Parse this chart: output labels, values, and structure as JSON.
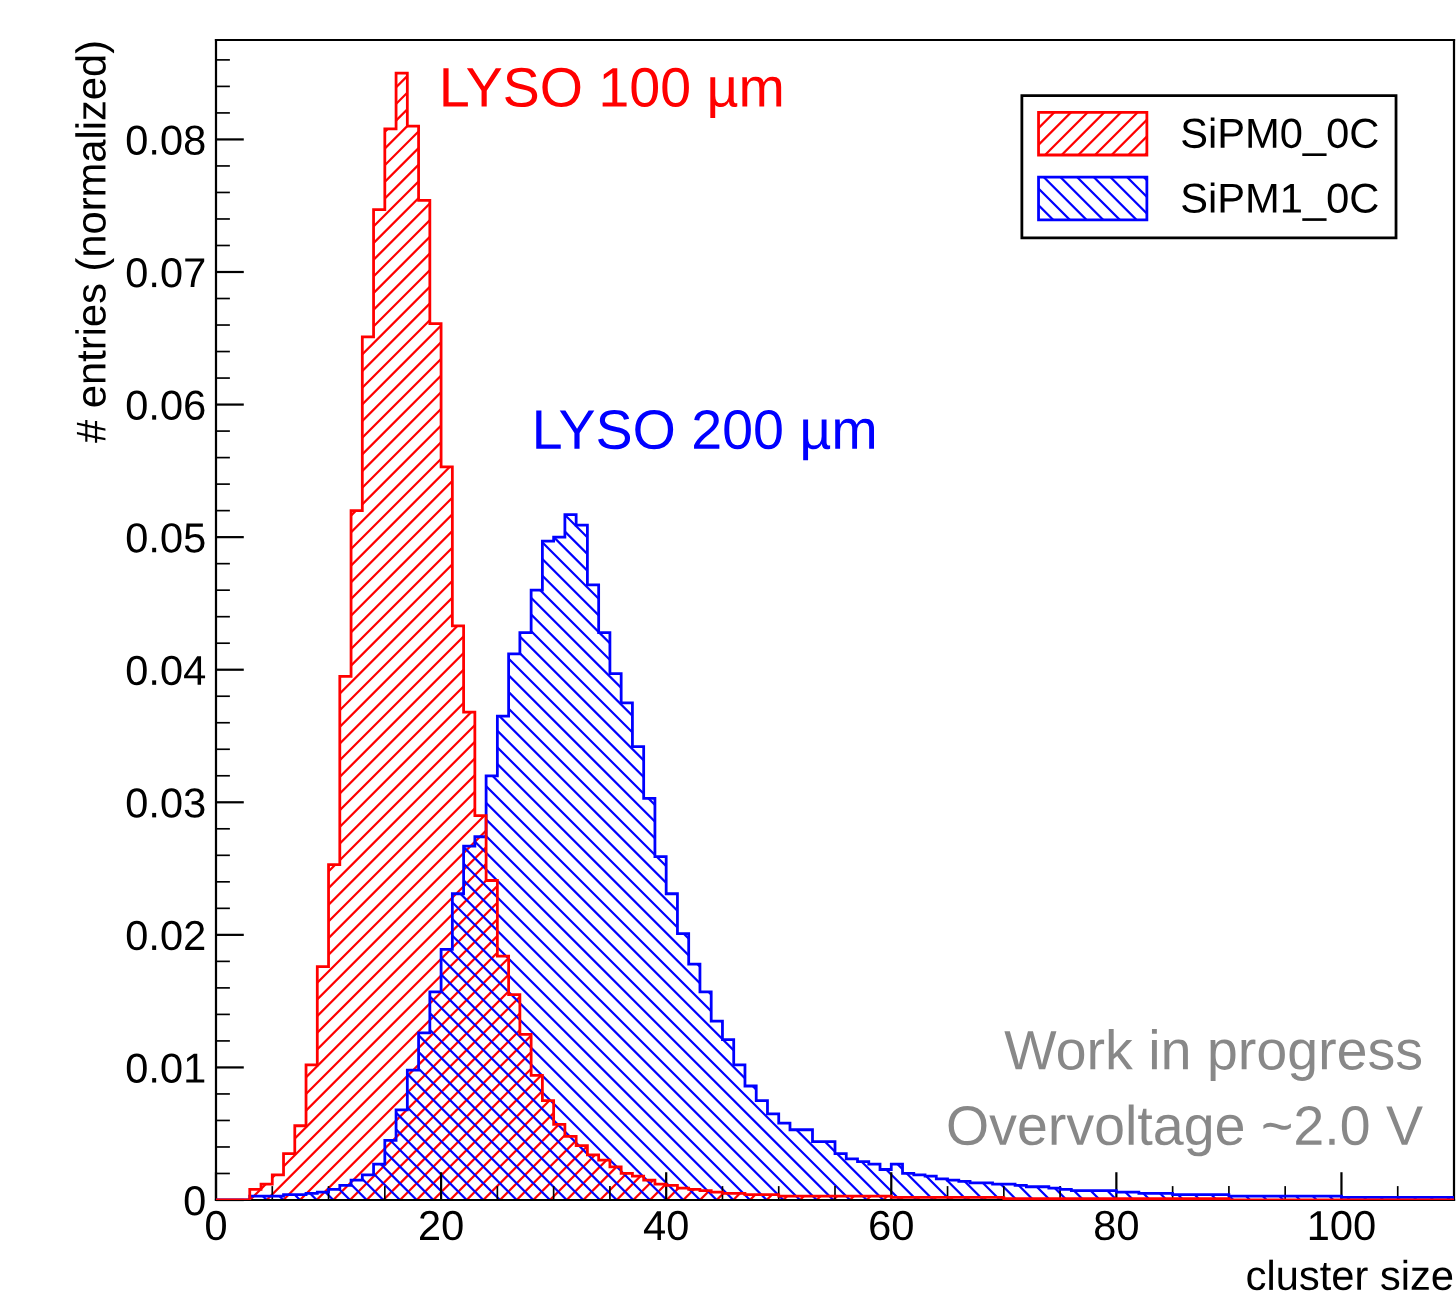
{
  "chart_data": {
    "type": "histogram",
    "xlabel": "cluster size",
    "ylabel": "# entries (normalized)",
    "bins": [
      0,
      1,
      2,
      3,
      4,
      5,
      6,
      7,
      8,
      9,
      10,
      11,
      12,
      13,
      14,
      15,
      16,
      17,
      18,
      19,
      20,
      21,
      22,
      23,
      24,
      25,
      26,
      27,
      28,
      29,
      30,
      31,
      32,
      33,
      34,
      35,
      36,
      37,
      38,
      39,
      40,
      41,
      42,
      43,
      44,
      45,
      46,
      47,
      48,
      49,
      50,
      51,
      52,
      53,
      54,
      55,
      56,
      57,
      58,
      59,
      60,
      61,
      62,
      63,
      64,
      65,
      66,
      67,
      68,
      69,
      70,
      71,
      72,
      73,
      74,
      75,
      76,
      77,
      78,
      79,
      80,
      81,
      82,
      83,
      84,
      85,
      86,
      87,
      88,
      89,
      90,
      91,
      92,
      93,
      94,
      95,
      96,
      97,
      98,
      99,
      100,
      101,
      102,
      103,
      104,
      105,
      106,
      107,
      108,
      109,
      110
    ],
    "series": [
      {
        "name": "SiPM0_0C",
        "color": "#ff0000",
        "values": [
          0,
          0,
          0,
          0.0008,
          0.0012,
          0.0019,
          0.0035,
          0.0056,
          0.0102,
          0.0176,
          0.0253,
          0.0395,
          0.052,
          0.0651,
          0.0747,
          0.0808,
          0.085,
          0.081,
          0.0754,
          0.0661,
          0.0553,
          0.0433,
          0.0368,
          0.029,
          0.0241,
          0.0184,
          0.0155,
          0.0125,
          0.0094,
          0.0075,
          0.0057,
          0.0048,
          0.0041,
          0.0034,
          0.003,
          0.0025,
          0.002,
          0.0018,
          0.0015,
          0.0012,
          0.0011,
          0.0009,
          0.0008,
          0.0007,
          0.0006,
          0.0005,
          0.0005,
          0.0004,
          0.0004,
          0.0004,
          0.0003,
          0.0003,
          0.0003,
          0.0003,
          0.0003,
          0.0003,
          0.0003,
          0.0003,
          0.0003,
          0.0003,
          0.0002,
          0.0002,
          0.0002,
          0.0002,
          0.0002,
          0.0002,
          0.0002,
          0.0002,
          0.0002,
          0.0002,
          0.0001,
          0.0001,
          0.0001,
          0.0001,
          0.0001,
          0.0001,
          0.0001,
          0.0001,
          0.0001,
          0.0001,
          0.0001,
          0.0001,
          0.0001,
          0.0001,
          0.0001,
          0.0001,
          0.0001,
          0.0001,
          0.0001,
          0.0001,
          0,
          0,
          0,
          0,
          0,
          0,
          0,
          0,
          0,
          0,
          0,
          0,
          0,
          0,
          0,
          0,
          0,
          0,
          0,
          0
        ]
      },
      {
        "name": "SiPM1_0C",
        "color": "#0000ff",
        "values": [
          0,
          0,
          0,
          0.0003,
          0.0003,
          0.0003,
          0.0004,
          0.0004,
          0.0005,
          0.0006,
          0.0008,
          0.0011,
          0.0015,
          0.0019,
          0.0027,
          0.0045,
          0.0068,
          0.0098,
          0.0126,
          0.0157,
          0.0189,
          0.0231,
          0.0267,
          0.0274,
          0.032,
          0.0365,
          0.0412,
          0.0428,
          0.046,
          0.0497,
          0.05,
          0.0517,
          0.0509,
          0.0464,
          0.0428,
          0.0397,
          0.0375,
          0.0342,
          0.0303,
          0.0259,
          0.0231,
          0.0201,
          0.0178,
          0.0157,
          0.0135,
          0.0121,
          0.0102,
          0.0086,
          0.0075,
          0.0065,
          0.0058,
          0.0053,
          0.0053,
          0.0044,
          0.0044,
          0.0035,
          0.0031,
          0.0029,
          0.0027,
          0.0023,
          0.0027,
          0.002,
          0.0019,
          0.0018,
          0.0016,
          0.0015,
          0.0014,
          0.0013,
          0.0013,
          0.0012,
          0.0012,
          0.0011,
          0.001,
          0.001,
          0.0009,
          0.0008,
          0.0007,
          0.0007,
          0.0007,
          0.0007,
          0.0006,
          0.0006,
          0.0005,
          0.0005,
          0.0005,
          0.0004,
          0.0004,
          0.0004,
          0.0004,
          0.0004,
          0.0003,
          0.0003,
          0.0003,
          0.0003,
          0.0003,
          0.0003,
          0.0003,
          0.0003,
          0.0003,
          0.0003,
          0.0002,
          0.0002,
          0.0002,
          0.0002,
          0.0002,
          0.0002,
          0.0002,
          0.0002,
          0.0002,
          0.0002
        ]
      }
    ],
    "annotations": [
      "LYSO 100 µm",
      "LYSO 200 µm",
      "Work in progress",
      "Overvoltage ~2.0 V"
    ],
    "xlim": [
      0,
      110
    ],
    "xticks": [
      0,
      20,
      40,
      60,
      80,
      100
    ],
    "ylim": [
      0,
      0.0875
    ],
    "yticks": [
      0,
      0.01,
      0.02,
      0.03,
      0.04,
      0.05,
      0.06,
      0.07,
      0.08
    ],
    "grid": false,
    "legend": "top right"
  }
}
